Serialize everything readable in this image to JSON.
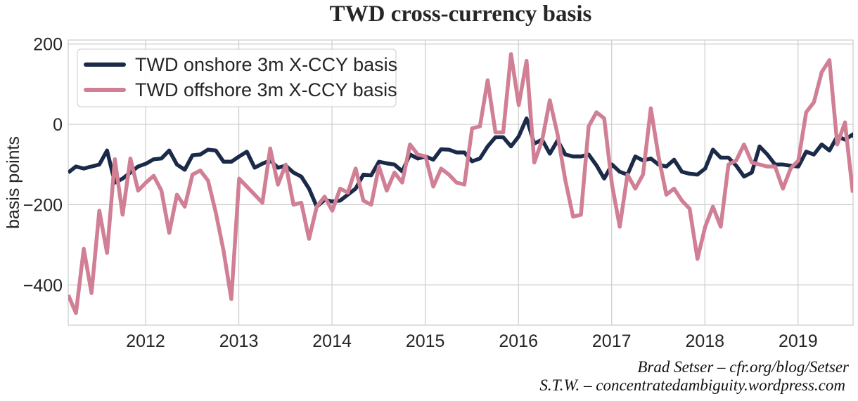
{
  "chart_data": {
    "type": "line",
    "title": "TWD cross-currency basis",
    "xlabel": "",
    "ylabel": "basis points",
    "xlim": [
      2011.17,
      2019.59
    ],
    "ylim": [
      -500,
      210
    ],
    "x_start": 2011.17,
    "x_step_months": 1,
    "x_ticks": [
      "2012",
      "2013",
      "2014",
      "2015",
      "2016",
      "2017",
      "2018",
      "2019"
    ],
    "x_tick_values": [
      2012,
      2013,
      2014,
      2015,
      2016,
      2017,
      2018,
      2019
    ],
    "y_ticks": [
      "200",
      "0",
      "−200",
      "−400"
    ],
    "y_tick_values": [
      200,
      0,
      -200,
      -400
    ],
    "grid": true,
    "legend_position": "top-left",
    "series": [
      {
        "name": "TWD onshore 3m X-CCY basis",
        "color": "#1a2a48",
        "values": [
          -120,
          -105,
          -110,
          -105,
          -100,
          -65,
          -145,
          -135,
          -120,
          -105,
          -98,
          -87,
          -85,
          -65,
          -100,
          -113,
          -77,
          -75,
          -63,
          -65,
          -93,
          -93,
          -80,
          -68,
          -108,
          -98,
          -90,
          -108,
          -103,
          -120,
          -130,
          -160,
          -205,
          -188,
          -192,
          -190,
          -175,
          -160,
          -125,
          -127,
          -93,
          -97,
          -100,
          -117,
          -75,
          -85,
          -80,
          -88,
          -62,
          -63,
          -70,
          -70,
          -92,
          -85,
          -55,
          -32,
          -32,
          -55,
          -30,
          15,
          -48,
          -38,
          -73,
          -40,
          -75,
          -80,
          -80,
          -75,
          -102,
          -135,
          -100,
          -118,
          -125,
          -80,
          -90,
          -85,
          -100,
          -105,
          -88,
          -118,
          -123,
          -125,
          -110,
          -63,
          -83,
          -83,
          -103,
          -130,
          -120,
          -55,
          -75,
          -100,
          -100,
          -103,
          -105,
          -68,
          -75,
          -50,
          -65,
          -30,
          -38,
          -25,
          -55
        ]
      },
      {
        "name": "TWD offshore 3m X-CCY basis",
        "color": "#d07f95",
        "values": [
          -425,
          -470,
          -310,
          -420,
          -215,
          -320,
          -87,
          -225,
          -85,
          -165,
          -145,
          -128,
          -165,
          -270,
          -175,
          -205,
          -125,
          -115,
          -140,
          -220,
          -315,
          -435,
          -135,
          -155,
          -175,
          -195,
          -60,
          -150,
          -100,
          -200,
          -195,
          -285,
          -205,
          -180,
          -215,
          -160,
          -170,
          -110,
          -190,
          -200,
          -105,
          -165,
          -120,
          -145,
          -50,
          -75,
          -80,
          -155,
          -110,
          -125,
          -145,
          -150,
          -10,
          -5,
          110,
          -20,
          -20,
          175,
          48,
          158,
          -95,
          -40,
          60,
          -25,
          -140,
          -230,
          -225,
          -5,
          30,
          15,
          -150,
          -255,
          -125,
          -160,
          -125,
          40,
          -80,
          -175,
          -160,
          -190,
          -210,
          -335,
          -255,
          -205,
          -255,
          -100,
          -90,
          -50,
          -95,
          -100,
          -105,
          -105,
          -160,
          -110,
          -90,
          30,
          55,
          130,
          160,
          -50,
          5,
          -170
        ]
      }
    ]
  },
  "credits": {
    "line1": "Brad Setser – cfr.org/blog/Setser",
    "line2": "S.T.W. – concentratedambiguity.wordpress.com"
  }
}
